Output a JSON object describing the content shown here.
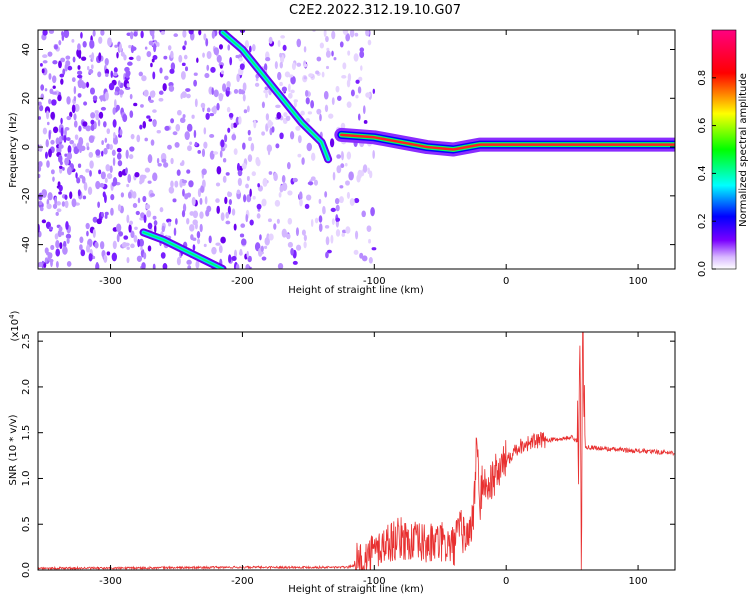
{
  "title": "C2E2.2022.312.19.10.G07",
  "chart_data": [
    {
      "type": "heatmap",
      "xlabel": "Height of straight line (km)",
      "ylabel": "Frequency (Hz)",
      "xlim": [
        -355,
        128
      ],
      "ylim": [
        -50,
        48
      ],
      "xticks": [
        -300,
        -200,
        -100,
        0,
        100
      ],
      "yticks": [
        -40,
        -20,
        0,
        20,
        40
      ],
      "colorbar": {
        "label": "Normalized spectral amplitude",
        "range": [
          0,
          1
        ],
        "ticks": [
          0.0,
          0.2,
          0.4,
          0.6,
          0.8
        ],
        "tick_labels": [
          "0.0",
          "0.2",
          "0.4",
          "0.6",
          "0.8"
        ],
        "colormap": [
          "#ffffff",
          "#7a00ff",
          "#0000ff",
          "#00ffff",
          "#00ff00",
          "#ffff00",
          "#ff0000",
          "#ff0080"
        ]
      },
      "features": [
        {
          "name": "carrier",
          "x": [
            -125,
            -100,
            -80,
            -60,
            -40,
            -20,
            0,
            40,
            80,
            128
          ],
          "y": [
            5,
            4,
            2,
            0,
            -1,
            1,
            1,
            1,
            1,
            1
          ]
        },
        {
          "name": "diagonal-streak",
          "x": [
            -215,
            -200,
            -185,
            -170,
            -155,
            -140,
            -135
          ],
          "y": [
            47,
            40,
            30,
            20,
            10,
            2,
            -5
          ]
        },
        {
          "name": "lower-streak",
          "x": [
            -275,
            -260,
            -245,
            -230,
            -215
          ],
          "y": [
            -35,
            -38,
            -42,
            -46,
            -50
          ]
        }
      ]
    },
    {
      "type": "line",
      "xlabel": "Height of straight line (km)",
      "ylabel": "SNR (10 * v/v)",
      "yscale_label": "(x10",
      "yscale_exp": "4",
      "xlim": [
        -355,
        128
      ],
      "ylim": [
        0,
        2.6
      ],
      "xticks": [
        -300,
        -200,
        -100,
        0,
        100
      ],
      "yticks": [
        0.0,
        0.5,
        1.0,
        1.5,
        2.0,
        2.5
      ],
      "ytick_labels": [
        "0.0",
        "0.5",
        "1.0",
        "1.5",
        "2.0",
        "2.5"
      ],
      "color": "#e83030",
      "series_points": {
        "x": [
          -355,
          -300,
          -200,
          -120,
          -110,
          -100,
          -90,
          -80,
          -70,
          -60,
          -50,
          -40,
          -35,
          -30,
          -25,
          -22,
          -20,
          -18,
          -15,
          -10,
          -5,
          0,
          5,
          10,
          15,
          20,
          30,
          40,
          50,
          55,
          56,
          57,
          58,
          60,
          70,
          80,
          100,
          128
        ],
        "y": [
          0.02,
          0.02,
          0.03,
          0.03,
          0.08,
          0.2,
          0.3,
          0.35,
          0.3,
          0.28,
          0.3,
          0.25,
          0.45,
          0.35,
          0.55,
          1.5,
          0.6,
          1.0,
          0.9,
          1.0,
          1.1,
          1.2,
          1.3,
          1.35,
          1.38,
          1.4,
          1.42,
          1.43,
          1.45,
          1.4,
          2.05,
          0.15,
          2.6,
          1.35,
          1.33,
          1.32,
          1.3,
          1.28
        ]
      }
    }
  ]
}
